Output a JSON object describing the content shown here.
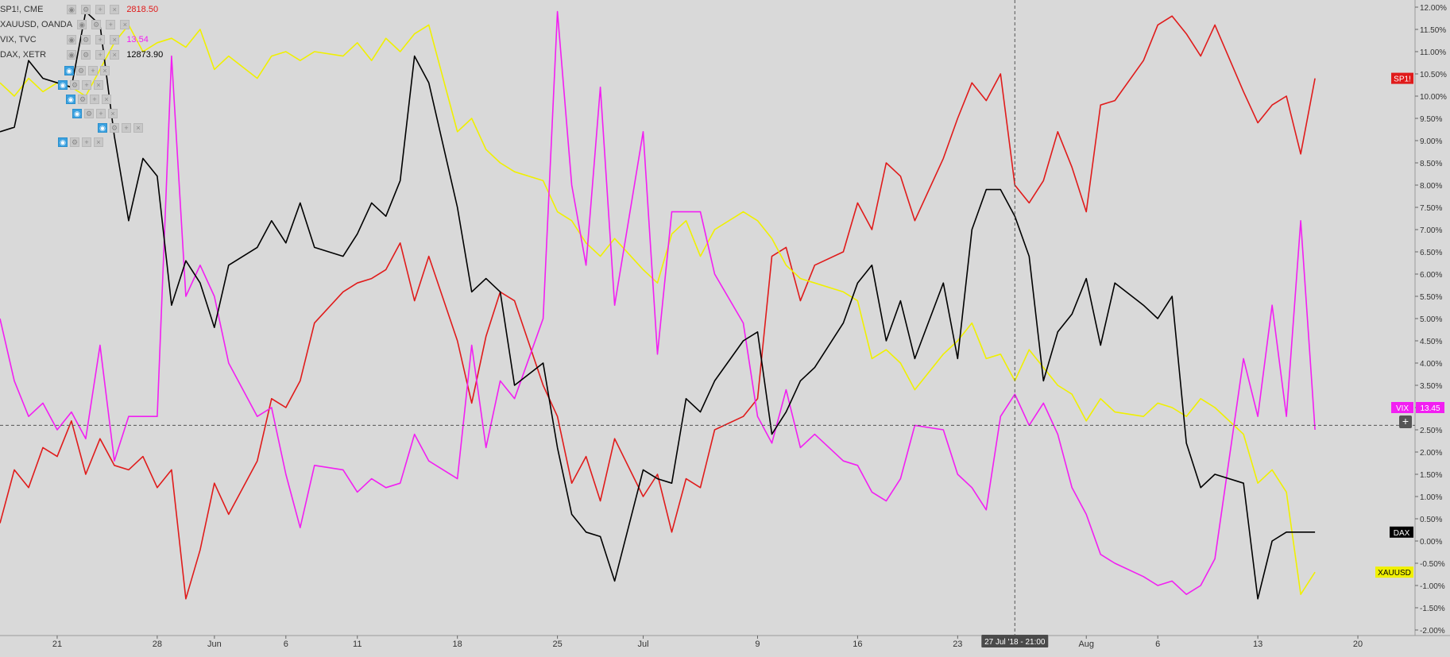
{
  "legend": [
    {
      "name": "SP1!, CME",
      "value": "2818.50",
      "color": "#e01b1b"
    },
    {
      "name": "XAUUSD, OANDA",
      "value": "",
      "color": "#f0f000"
    },
    {
      "name": "VIX, TVC",
      "value": "13.54",
      "color": "#f21ff2"
    },
    {
      "name": "DAX, XETR",
      "value": "12873.90",
      "color": "#000000"
    }
  ],
  "crosshair_label": "27 Jul '18 - 21:00",
  "price_tags": {
    "sp1": "SP1!",
    "vix": "VIX",
    "vix_value": "13.45",
    "dax": "DAX",
    "xauusd": "XAUUSD"
  },
  "icons": {
    "visibility": "eye-icon",
    "settings": "gear-icon",
    "add": "plus-icon",
    "remove": "close-icon",
    "crosshair": "plus-icon"
  },
  "chart_data": {
    "type": "line",
    "y_axis_unit": "%",
    "ylim": [
      -2.0,
      12.0
    ],
    "y_ticks": [
      "12.00%",
      "11.50%",
      "11.00%",
      "10.50%",
      "10.00%",
      "9.50%",
      "9.00%",
      "8.50%",
      "8.00%",
      "7.50%",
      "7.00%",
      "6.50%",
      "6.00%",
      "5.50%",
      "5.00%",
      "4.50%",
      "4.00%",
      "3.50%",
      "3.00%",
      "2.50%",
      "2.00%",
      "1.50%",
      "1.00%",
      "0.50%",
      "0.00%",
      "-0.50%",
      "-1.00%",
      "-1.50%",
      "-2.00%"
    ],
    "x_ticks": [
      {
        "label": "21",
        "date": "2018-05-21"
      },
      {
        "label": "28",
        "date": "2018-05-28"
      },
      {
        "label": "Jun",
        "date": "2018-06-01"
      },
      {
        "label": "6",
        "date": "2018-06-06"
      },
      {
        "label": "11",
        "date": "2018-06-11"
      },
      {
        "label": "18",
        "date": "2018-06-18"
      },
      {
        "label": "25",
        "date": "2018-06-25"
      },
      {
        "label": "Jul",
        "date": "2018-07-01"
      },
      {
        "label": "9",
        "date": "2018-07-09"
      },
      {
        "label": "16",
        "date": "2018-07-16"
      },
      {
        "label": "23",
        "date": "2018-07-23"
      },
      {
        "label": "Aug",
        "date": "2018-08-01"
      },
      {
        "label": "6",
        "date": "2018-08-06"
      },
      {
        "label": "13",
        "date": "2018-08-13"
      },
      {
        "label": "20",
        "date": "2018-08-20"
      }
    ],
    "xlim": [
      "2018-05-17",
      "2018-08-24"
    ],
    "grid": false,
    "crosshair": {
      "date": "2018-07-27",
      "value": 2.6
    },
    "series": [
      {
        "name": "SP1!",
        "color": "#e01b1b",
        "x": [
          "2018-05-17",
          "2018-05-18",
          "2018-05-19",
          "2018-05-20",
          "2018-05-21",
          "2018-05-22",
          "2018-05-23",
          "2018-05-24",
          "2018-05-25",
          "2018-05-26",
          "2018-05-27",
          "2018-05-28",
          "2018-05-29",
          "2018-05-30",
          "2018-05-31",
          "2018-06-01",
          "2018-06-02",
          "2018-06-04",
          "2018-06-05",
          "2018-06-06",
          "2018-06-07",
          "2018-06-08",
          "2018-06-10",
          "2018-06-11",
          "2018-06-12",
          "2018-06-13",
          "2018-06-14",
          "2018-06-15",
          "2018-06-16",
          "2018-06-18",
          "2018-06-19",
          "2018-06-20",
          "2018-06-21",
          "2018-06-22",
          "2018-06-24",
          "2018-06-25",
          "2018-06-26",
          "2018-06-27",
          "2018-06-28",
          "2018-06-29",
          "2018-07-01",
          "2018-07-02",
          "2018-07-03",
          "2018-07-04",
          "2018-07-05",
          "2018-07-06",
          "2018-07-08",
          "2018-07-09",
          "2018-07-10",
          "2018-07-11",
          "2018-07-12",
          "2018-07-13",
          "2018-07-15",
          "2018-07-16",
          "2018-07-17",
          "2018-07-18",
          "2018-07-19",
          "2018-07-20",
          "2018-07-22",
          "2018-07-23",
          "2018-07-24",
          "2018-07-25",
          "2018-07-26",
          "2018-07-27",
          "2018-07-28",
          "2018-07-29",
          "2018-07-30",
          "2018-07-31",
          "2018-08-01",
          "2018-08-02",
          "2018-08-03",
          "2018-08-05",
          "2018-08-06",
          "2018-08-07",
          "2018-08-08",
          "2018-08-09",
          "2018-08-10",
          "2018-08-12",
          "2018-08-13",
          "2018-08-14",
          "2018-08-15",
          "2018-08-16",
          "2018-08-17"
        ],
        "values": [
          0.4,
          1.6,
          1.2,
          2.1,
          1.9,
          2.7,
          1.5,
          2.3,
          1.7,
          1.6,
          1.9,
          1.2,
          1.6,
          -1.3,
          -0.2,
          1.3,
          0.6,
          1.8,
          3.2,
          3.0,
          3.6,
          4.9,
          5.6,
          5.8,
          5.9,
          6.1,
          6.7,
          5.4,
          6.4,
          4.5,
          3.1,
          4.6,
          5.6,
          5.4,
          3.5,
          2.8,
          1.3,
          1.9,
          0.9,
          2.3,
          1.0,
          1.5,
          0.2,
          1.4,
          1.2,
          2.5,
          2.8,
          3.2,
          6.4,
          6.6,
          5.4,
          6.2,
          6.5,
          7.6,
          7.0,
          8.5,
          8.2,
          7.2,
          8.6,
          9.5,
          10.3,
          9.9,
          10.5,
          8.0,
          7.6,
          8.1,
          9.2,
          8.4,
          7.4,
          9.8,
          9.9,
          10.8,
          11.6,
          11.8,
          11.4,
          10.9,
          11.6,
          10.1,
          9.4,
          9.8,
          10.0,
          8.7,
          10.4
        ]
      },
      {
        "name": "XAUUSD",
        "color": "#f0f000",
        "x": [
          "2018-05-17",
          "2018-05-18",
          "2018-05-19",
          "2018-05-20",
          "2018-05-21",
          "2018-05-22",
          "2018-05-23",
          "2018-05-24",
          "2018-05-25",
          "2018-05-26",
          "2018-05-27",
          "2018-05-28",
          "2018-05-29",
          "2018-05-30",
          "2018-05-31",
          "2018-06-01",
          "2018-06-02",
          "2018-06-04",
          "2018-06-05",
          "2018-06-06",
          "2018-06-07",
          "2018-06-08",
          "2018-06-10",
          "2018-06-11",
          "2018-06-12",
          "2018-06-13",
          "2018-06-14",
          "2018-06-15",
          "2018-06-16",
          "2018-06-18",
          "2018-06-19",
          "2018-06-20",
          "2018-06-21",
          "2018-06-22",
          "2018-06-24",
          "2018-06-25",
          "2018-06-26",
          "2018-06-27",
          "2018-06-28",
          "2018-06-29",
          "2018-07-01",
          "2018-07-02",
          "2018-07-03",
          "2018-07-04",
          "2018-07-05",
          "2018-07-06",
          "2018-07-08",
          "2018-07-09",
          "2018-07-10",
          "2018-07-11",
          "2018-07-12",
          "2018-07-13",
          "2018-07-15",
          "2018-07-16",
          "2018-07-17",
          "2018-07-18",
          "2018-07-19",
          "2018-07-20",
          "2018-07-22",
          "2018-07-23",
          "2018-07-24",
          "2018-07-25",
          "2018-07-26",
          "2018-07-27",
          "2018-07-28",
          "2018-07-29",
          "2018-07-30",
          "2018-07-31",
          "2018-08-01",
          "2018-08-02",
          "2018-08-03",
          "2018-08-05",
          "2018-08-06",
          "2018-08-07",
          "2018-08-08",
          "2018-08-09",
          "2018-08-10",
          "2018-08-12",
          "2018-08-13",
          "2018-08-14",
          "2018-08-15",
          "2018-08-16",
          "2018-08-17"
        ],
        "values": [
          10.3,
          10.0,
          10.4,
          10.1,
          10.3,
          10.2,
          10.0,
          10.6,
          11.2,
          11.6,
          11.0,
          11.2,
          11.3,
          11.1,
          11.5,
          10.6,
          10.9,
          10.4,
          10.9,
          11.0,
          10.8,
          11.0,
          10.9,
          11.2,
          10.8,
          11.3,
          11.0,
          11.4,
          11.6,
          9.2,
          9.5,
          8.8,
          8.5,
          8.3,
          8.1,
          7.4,
          7.2,
          6.7,
          6.4,
          6.8,
          6.1,
          5.8,
          6.9,
          7.2,
          6.4,
          7.0,
          7.4,
          7.2,
          6.8,
          6.2,
          5.9,
          5.8,
          5.6,
          5.4,
          4.1,
          4.3,
          4.0,
          3.4,
          4.2,
          4.5,
          4.9,
          4.1,
          4.2,
          3.6,
          4.3,
          3.9,
          3.5,
          3.3,
          2.7,
          3.2,
          2.9,
          2.8,
          3.1,
          3.0,
          2.8,
          3.2,
          3.0,
          2.4,
          1.3,
          1.6,
          1.1,
          -1.2,
          -0.7
        ]
      },
      {
        "name": "VIX",
        "color": "#f21ff2",
        "x": [
          "2018-05-17",
          "2018-05-18",
          "2018-05-19",
          "2018-05-20",
          "2018-05-21",
          "2018-05-22",
          "2018-05-23",
          "2018-05-24",
          "2018-05-25",
          "2018-05-26",
          "2018-05-27",
          "2018-05-28",
          "2018-05-29",
          "2018-05-30",
          "2018-05-31",
          "2018-06-01",
          "2018-06-02",
          "2018-06-04",
          "2018-06-05",
          "2018-06-06",
          "2018-06-07",
          "2018-06-08",
          "2018-06-10",
          "2018-06-11",
          "2018-06-12",
          "2018-06-13",
          "2018-06-14",
          "2018-06-15",
          "2018-06-16",
          "2018-06-18",
          "2018-06-19",
          "2018-06-20",
          "2018-06-21",
          "2018-06-22",
          "2018-06-24",
          "2018-06-25",
          "2018-06-26",
          "2018-06-27",
          "2018-06-28",
          "2018-06-29",
          "2018-07-01",
          "2018-07-02",
          "2018-07-03",
          "2018-07-04",
          "2018-07-05",
          "2018-07-06",
          "2018-07-08",
          "2018-07-09",
          "2018-07-10",
          "2018-07-11",
          "2018-07-12",
          "2018-07-13",
          "2018-07-15",
          "2018-07-16",
          "2018-07-17",
          "2018-07-18",
          "2018-07-19",
          "2018-07-20",
          "2018-07-22",
          "2018-07-23",
          "2018-07-24",
          "2018-07-25",
          "2018-07-26",
          "2018-07-27",
          "2018-07-28",
          "2018-07-29",
          "2018-07-30",
          "2018-07-31",
          "2018-08-01",
          "2018-08-02",
          "2018-08-03",
          "2018-08-05",
          "2018-08-06",
          "2018-08-07",
          "2018-08-08",
          "2018-08-09",
          "2018-08-10",
          "2018-08-12",
          "2018-08-13",
          "2018-08-14",
          "2018-08-15",
          "2018-08-16",
          "2018-08-17"
        ],
        "values": [
          5.0,
          3.6,
          2.8,
          3.1,
          2.5,
          2.9,
          2.3,
          4.4,
          1.8,
          2.8,
          2.8,
          2.8,
          10.9,
          5.5,
          6.2,
          5.5,
          4.0,
          2.8,
          3.0,
          1.5,
          0.3,
          1.7,
          1.6,
          1.1,
          1.4,
          1.2,
          1.3,
          2.4,
          1.8,
          1.4,
          4.4,
          2.1,
          3.6,
          3.2,
          5.0,
          11.9,
          8.0,
          6.2,
          10.2,
          5.3,
          9.2,
          4.2,
          7.4,
          7.4,
          7.4,
          6.0,
          4.9,
          2.8,
          2.2,
          3.4,
          2.1,
          2.4,
          1.8,
          1.7,
          1.1,
          0.9,
          1.4,
          2.6,
          2.5,
          1.5,
          1.2,
          0.7,
          2.8,
          3.3,
          2.6,
          3.1,
          2.4,
          1.2,
          0.6,
          -0.3,
          -0.5,
          -0.8,
          -1.0,
          -0.9,
          -1.2,
          -1.0,
          -0.4,
          4.1,
          2.8,
          5.3,
          2.8,
          7.2,
          2.5
        ]
      },
      {
        "name": "DAX",
        "color": "#000000",
        "x": [
          "2018-05-17",
          "2018-05-18",
          "2018-05-19",
          "2018-05-20",
          "2018-05-21",
          "2018-05-22",
          "2018-05-23",
          "2018-05-24",
          "2018-05-25",
          "2018-05-26",
          "2018-05-27",
          "2018-05-28",
          "2018-05-29",
          "2018-05-30",
          "2018-05-31",
          "2018-06-01",
          "2018-06-02",
          "2018-06-04",
          "2018-06-05",
          "2018-06-06",
          "2018-06-07",
          "2018-06-08",
          "2018-06-10",
          "2018-06-11",
          "2018-06-12",
          "2018-06-13",
          "2018-06-14",
          "2018-06-15",
          "2018-06-16",
          "2018-06-18",
          "2018-06-19",
          "2018-06-20",
          "2018-06-21",
          "2018-06-22",
          "2018-06-24",
          "2018-06-25",
          "2018-06-26",
          "2018-06-27",
          "2018-06-28",
          "2018-06-29",
          "2018-07-01",
          "2018-07-02",
          "2018-07-03",
          "2018-07-04",
          "2018-07-05",
          "2018-07-06",
          "2018-07-08",
          "2018-07-09",
          "2018-07-10",
          "2018-07-11",
          "2018-07-12",
          "2018-07-13",
          "2018-07-15",
          "2018-07-16",
          "2018-07-17",
          "2018-07-18",
          "2018-07-19",
          "2018-07-20",
          "2018-07-22",
          "2018-07-23",
          "2018-07-24",
          "2018-07-25",
          "2018-07-26",
          "2018-07-27",
          "2018-07-28",
          "2018-07-29",
          "2018-07-30",
          "2018-07-31",
          "2018-08-01",
          "2018-08-02",
          "2018-08-03",
          "2018-08-05",
          "2018-08-06",
          "2018-08-07",
          "2018-08-08",
          "2018-08-09",
          "2018-08-10",
          "2018-08-12",
          "2018-08-13",
          "2018-08-14",
          "2018-08-15",
          "2018-08-16",
          "2018-08-17"
        ],
        "values": [
          9.2,
          9.3,
          10.8,
          10.4,
          10.3,
          10.2,
          11.9,
          11.6,
          9.1,
          7.2,
          8.6,
          8.2,
          5.3,
          6.3,
          5.8,
          4.8,
          6.2,
          6.6,
          7.2,
          6.7,
          7.6,
          6.6,
          6.4,
          6.9,
          7.6,
          7.3,
          8.1,
          10.9,
          10.3,
          7.5,
          5.6,
          5.9,
          5.6,
          3.5,
          4.0,
          2.1,
          0.6,
          0.2,
          0.1,
          -0.9,
          1.6,
          1.4,
          1.3,
          3.2,
          2.9,
          3.6,
          4.5,
          4.7,
          2.4,
          2.9,
          3.6,
          3.9,
          4.9,
          5.8,
          6.2,
          4.5,
          5.4,
          4.1,
          5.8,
          4.1,
          7.0,
          7.9,
          7.9,
          7.3,
          6.4,
          3.6,
          4.7,
          5.1,
          5.9,
          4.4,
          5.8,
          5.3,
          5.0,
          5.5,
          2.2,
          1.2,
          1.5,
          1.3,
          -1.3,
          0.0,
          0.2,
          0.2,
          0.2
        ]
      }
    ]
  }
}
